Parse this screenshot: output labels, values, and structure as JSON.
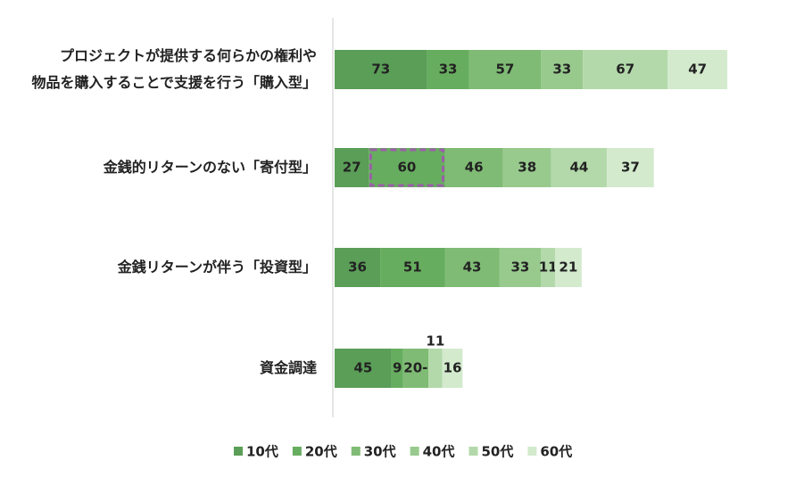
{
  "chart_data": {
    "type": "stacked-bar-horizontal",
    "categories": [
      "プロジェクトが提供する何らかの権利や\n物品を購入することで支援を行う「購入型」",
      "金銭的リターンのない「寄付型」",
      "金銭リターンが伴う「投資型」",
      "資金調達"
    ],
    "series": [
      {
        "name": "10代",
        "color": "#5a9e57",
        "values": [
          73,
          27,
          36,
          45
        ]
      },
      {
        "name": "20代",
        "color": "#67ad5f",
        "values": [
          33,
          60,
          51,
          9
        ]
      },
      {
        "name": "30代",
        "color": "#7fbb74",
        "values": [
          57,
          46,
          43,
          20
        ],
        "value_labels": [
          "57",
          "46",
          "43",
          "20-"
        ]
      },
      {
        "name": "40代",
        "color": "#98ca8e",
        "values": [
          33,
          38,
          33,
          null
        ]
      },
      {
        "name": "50代",
        "color": "#b3d9aa",
        "values": [
          67,
          44,
          11,
          11
        ]
      },
      {
        "name": "60代",
        "color": "#d3eacd",
        "values": [
          47,
          37,
          21,
          16
        ]
      }
    ],
    "highlight": {
      "series": 1,
      "category": 1,
      "color": "#9b5fa8"
    }
  }
}
